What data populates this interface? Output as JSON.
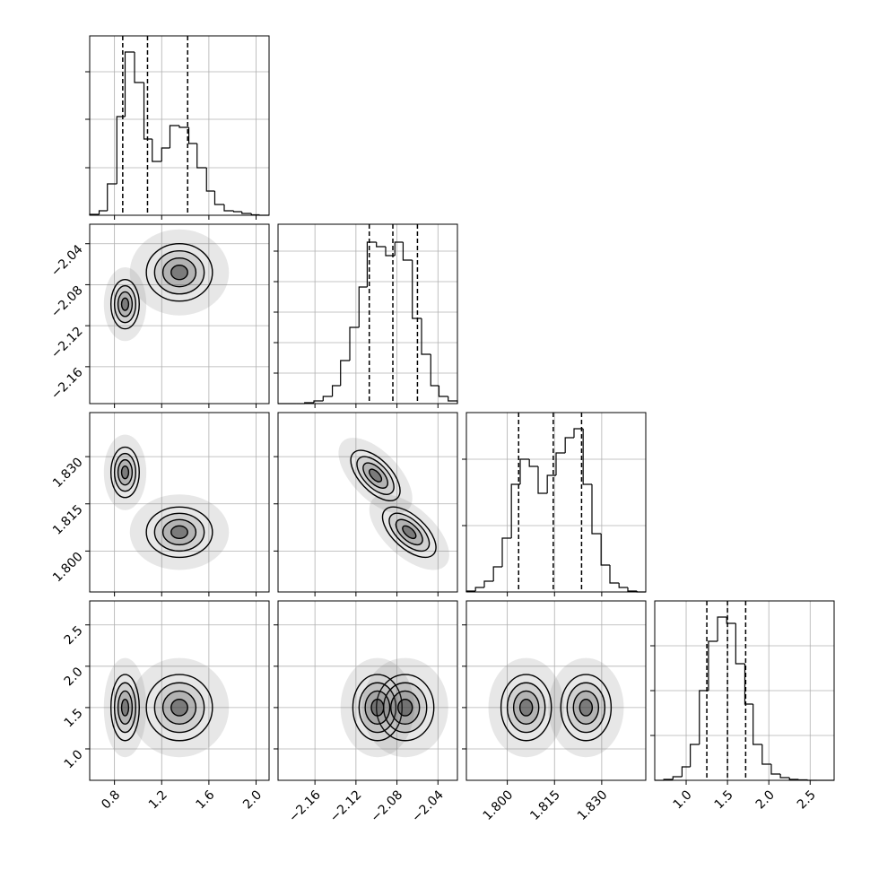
{
  "chart_data": {
    "type": "corner",
    "params": [
      {
        "lim": [
          0.59,
          2.11
        ],
        "ticks": [
          0.8,
          1.2,
          1.6,
          {
            "value": 2.0,
            "label": "2.0"
          }
        ],
        "quantiles": [
          0.87,
          1.08,
          1.42
        ],
        "hist": {
          "bins": [
            0.59,
            0.67,
            0.74,
            0.82,
            0.89,
            0.97,
            1.05,
            1.12,
            1.2,
            1.27,
            1.35,
            1.43,
            1.5,
            1.58,
            1.65,
            1.73,
            1.81,
            1.88,
            1.96,
            2.03,
            2.11
          ],
          "counts": [
            1,
            5,
            35,
            110,
            182,
            148,
            85,
            60,
            75,
            100,
            98,
            80,
            53,
            27,
            12,
            5,
            4,
            2,
            0.5,
            0
          ],
          "ylim": [
            0,
            200
          ],
          "yticks": [
            53,
            107,
            160
          ]
        }
      },
      {
        "lim": [
          -2.196,
          -2.021
        ],
        "ticks": [
          {
            "value": -2.16,
            "label": "−2.16"
          },
          {
            "value": -2.12,
            "label": "−2.12"
          },
          {
            "value": -2.08,
            "label": "−2.08"
          },
          {
            "value": -2.04,
            "label": "−2.04"
          }
        ],
        "quantiles": [
          -2.107,
          -2.084,
          -2.06
        ],
        "hist": {
          "bins": [
            -2.196,
            -2.187,
            -2.178,
            -2.17,
            -2.161,
            -2.152,
            -2.143,
            -2.135,
            -2.126,
            -2.117,
            -2.109,
            -2.1,
            -2.091,
            -2.082,
            -2.074,
            -2.065,
            -2.056,
            -2.047,
            -2.039,
            -2.03,
            -2.021
          ],
          "counts": [
            0,
            0,
            0,
            1,
            3,
            8,
            20,
            48,
            85,
            130,
            180,
            175,
            165,
            180,
            160,
            95,
            55,
            20,
            8,
            3
          ],
          "ylim": [
            0,
            200
          ],
          "yticks": [
            34,
            68,
            102,
            136,
            170
          ]
        }
      },
      {
        "lim": [
          1.787,
          1.844
        ],
        "ticks": [
          {
            "value": 1.8,
            "label": "1.800"
          },
          {
            "value": 1.815,
            "label": "1.815"
          },
          {
            "value": 1.83,
            "label": "1.830"
          }
        ],
        "quantiles": [
          1.8036,
          1.8146,
          1.8236
        ],
        "hist": {
          "bins": [
            1.787,
            1.7899,
            1.7927,
            1.7956,
            1.7984,
            1.8013,
            1.8041,
            1.807,
            1.8098,
            1.8127,
            1.8155,
            1.8184,
            1.8212,
            1.8241,
            1.8269,
            1.8298,
            1.8326,
            1.8355,
            1.8383,
            1.8412,
            1.844
          ],
          "counts": [
            1,
            5,
            12,
            28,
            60,
            120,
            148,
            140,
            110,
            130,
            155,
            172,
            182,
            120,
            65,
            30,
            10,
            5,
            1,
            0
          ],
          "ylim": [
            0,
            200
          ],
          "yticks": [
            74,
            148
          ]
        }
      },
      {
        "lim": [
          0.62,
          2.79
        ],
        "ticks": [
          {
            "value": 1.0,
            "label": "1.0"
          },
          1.5,
          {
            "value": 2.0,
            "label": "2.0"
          },
          2.5
        ],
        "quantiles": [
          1.25,
          1.5,
          1.72
        ],
        "hist": {
          "bins": [
            0.62,
            0.73,
            0.84,
            0.95,
            1.05,
            1.16,
            1.27,
            1.38,
            1.49,
            1.6,
            1.71,
            1.81,
            1.92,
            2.03,
            2.14,
            2.25,
            2.36,
            2.47,
            2.58,
            2.68,
            2.79
          ],
          "counts": [
            0,
            1,
            4,
            15,
            40,
            100,
            155,
            182,
            175,
            130,
            85,
            40,
            18,
            7,
            3,
            1,
            0.5,
            0,
            0,
            0
          ],
          "ylim": [
            0,
            200
          ],
          "yticks": [
            50,
            100,
            150
          ]
        }
      }
    ],
    "panels": [
      {
        "row": 1,
        "col": 0,
        "components": [
          {
            "mean": [
              0.89,
              -2.099
            ],
            "sd": [
              0.06,
              0.012
            ],
            "rho": 0
          },
          {
            "mean": [
              1.35,
              -2.068
            ],
            "sd": [
              0.14,
              0.014
            ],
            "rho": 0
          }
        ]
      },
      {
        "row": 2,
        "col": 0,
        "components": [
          {
            "mean": [
              0.89,
              1.825
            ],
            "sd": [
              0.06,
              0.004
            ],
            "rho": 0
          },
          {
            "mean": [
              1.35,
              1.806
            ],
            "sd": [
              0.14,
              0.004
            ],
            "rho": 0
          }
        ]
      },
      {
        "row": 2,
        "col": 1,
        "components": [
          {
            "mean": [
              -2.101,
              1.824
            ],
            "sd": [
              0.012,
              0.004
            ],
            "rho": -0.6
          },
          {
            "mean": [
              -2.068,
              1.806
            ],
            "sd": [
              0.013,
              0.004
            ],
            "rho": -0.6
          }
        ]
      },
      {
        "row": 3,
        "col": 0,
        "components": [
          {
            "mean": [
              0.89,
              1.5
            ],
            "sd": [
              0.06,
              0.2
            ],
            "rho": 0
          },
          {
            "mean": [
              1.35,
              1.5
            ],
            "sd": [
              0.14,
              0.2
            ],
            "rho": 0
          }
        ]
      },
      {
        "row": 3,
        "col": 1,
        "components": [
          {
            "mean": [
              -2.099,
              1.5
            ],
            "sd": [
              0.012,
              0.2
            ],
            "rho": 0
          },
          {
            "mean": [
              -2.072,
              1.5
            ],
            "sd": [
              0.014,
              0.2
            ],
            "rho": 0
          }
        ]
      },
      {
        "row": 3,
        "col": 2,
        "components": [
          {
            "mean": [
              1.825,
              1.5
            ],
            "sd": [
              0.004,
              0.2
            ],
            "rho": 0
          },
          {
            "mean": [
              1.806,
              1.5
            ],
            "sd": [
              0.004,
              0.2
            ],
            "rho": 0
          }
        ]
      }
    ]
  }
}
